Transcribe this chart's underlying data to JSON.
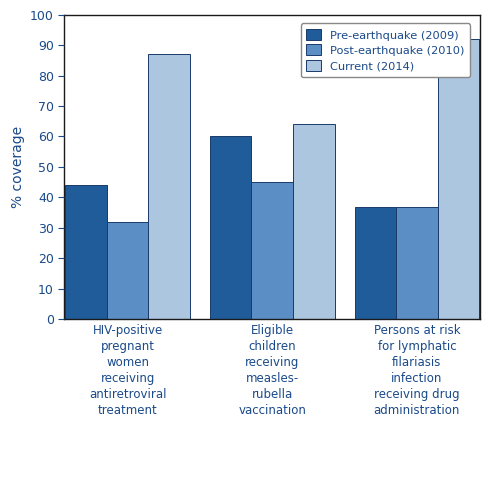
{
  "categories": [
    "HIV-positive\npregnant\nwomen\nreceiving\nantiretroviral\ntreatment",
    "Eligible\nchildren\nreceiving\nmeasles-\nrubella\nvaccination",
    "Persons at risk\nfor lymphatic\nfilariasis\ninfection\nreceiving drug\nadministration"
  ],
  "series": [
    {
      "label": "Pre-earthquake (2009)",
      "color": "#1f5c99",
      "values": [
        44,
        60,
        37
      ]
    },
    {
      "label": "Post-earthquake (2010)",
      "color": "#5b8ec4",
      "values": [
        32,
        45,
        37
      ]
    },
    {
      "label": "Current (2014)",
      "color": "#adc6e0",
      "values": [
        87,
        64,
        92
      ]
    }
  ],
  "ylabel": "% coverage",
  "ylim": [
    0,
    100
  ],
  "yticks": [
    0,
    10,
    20,
    30,
    40,
    50,
    60,
    70,
    80,
    90,
    100
  ],
  "bar_width": 0.23,
  "group_positions": [
    0.35,
    1.15,
    1.95
  ],
  "background_color": "#ffffff",
  "edge_color": "#1a3a6a",
  "text_color": "#1a4a8a",
  "spine_color": "#1a1a1a"
}
